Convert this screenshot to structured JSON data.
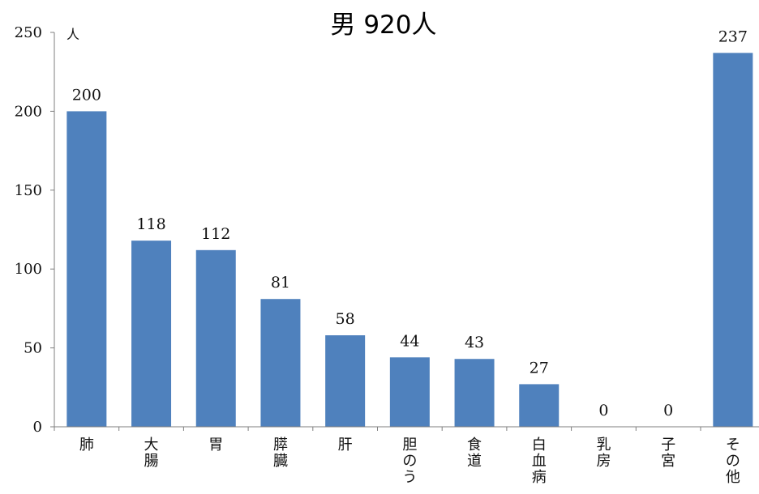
{
  "chart_data": {
    "type": "bar",
    "title": "男  920人",
    "ylabel": "",
    "xlabel": "",
    "y_unit": "人",
    "ylim": [
      0,
      250
    ],
    "yticks": [
      0,
      50,
      100,
      150,
      200,
      250
    ],
    "grid": false,
    "legend": "none",
    "bar_color": "#4F81BD",
    "categories": [
      "肺",
      "大腸",
      "胃",
      "膵臓",
      "肝",
      "胆のう",
      "食道",
      "白血病",
      "乳房",
      "子宮",
      "その他"
    ],
    "values": [
      200,
      118,
      112,
      81,
      58,
      44,
      43,
      27,
      0,
      0,
      237
    ],
    "value_labels": [
      "200",
      "118",
      "112",
      "81",
      "58",
      "44",
      "43",
      "27",
      "0",
      "0",
      "237"
    ]
  }
}
